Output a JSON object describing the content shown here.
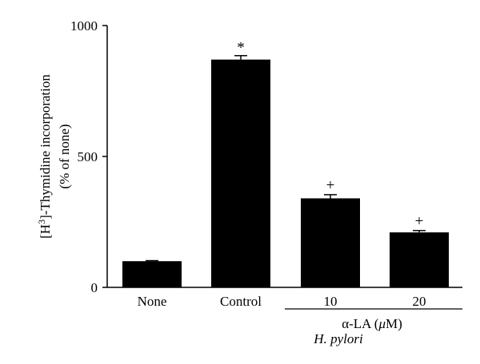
{
  "chart_data": {
    "type": "bar",
    "categories": [
      "None",
      "Control",
      "10",
      "20"
    ],
    "values": [
      100,
      870,
      340,
      210
    ],
    "errors": [
      2,
      15,
      14,
      7
    ],
    "annotations": [
      "",
      "*",
      "+",
      "+"
    ],
    "ylim": [
      0,
      1000
    ],
    "yticks": [
      0,
      500,
      1000
    ],
    "ylabel_line1_pre": "[H",
    "ylabel_sup": "3",
    "ylabel_line1_post": "]-Thymidine incorporation",
    "ylabel_line2": "(% of none)",
    "group_label_prefix": "α-LA (",
    "group_label_unit": "μ",
    "group_label_suffix": "M)",
    "group_label_2": "H. pylori",
    "bar_color": "#000000",
    "grid": false
  }
}
